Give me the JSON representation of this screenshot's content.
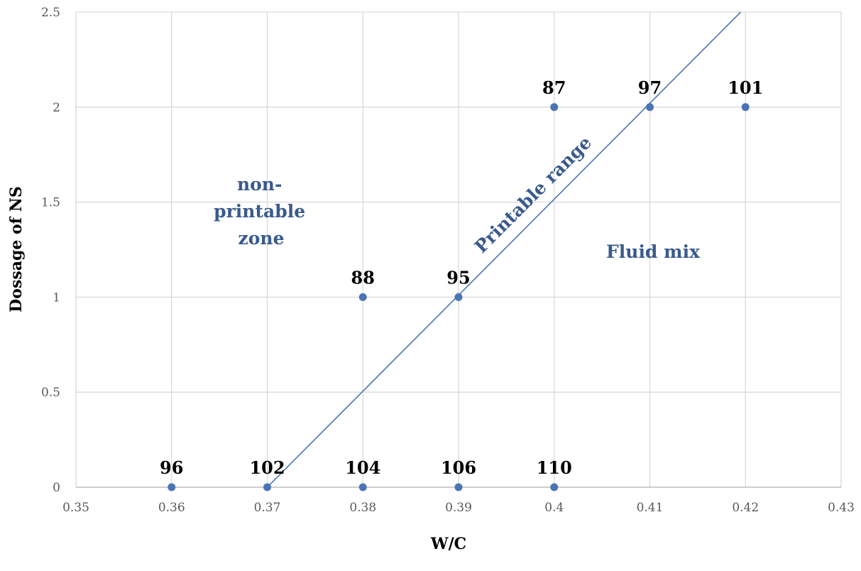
{
  "chart_data": {
    "type": "scatter",
    "xlabel": "W/C",
    "ylabel": "Dossage of NS",
    "xlim": [
      0.35,
      0.43
    ],
    "ylim": [
      0,
      2.5
    ],
    "x_ticks": [
      "0.35",
      "0.36",
      "0.37",
      "0.38",
      "0.39",
      "0.4",
      "0.41",
      "0.42",
      "0.43"
    ],
    "y_ticks": [
      "0",
      "0.5",
      "1",
      "1.5",
      "2",
      "2.5"
    ],
    "grid": true,
    "colors": {
      "marker": "#4a74b5",
      "line": "#4a74b5",
      "annotation": "#3a5a8c",
      "grid": "#d9d9d9"
    },
    "points": [
      {
        "x": 0.36,
        "y": 0,
        "label": "96"
      },
      {
        "x": 0.37,
        "y": 0,
        "label": "102"
      },
      {
        "x": 0.38,
        "y": 0,
        "label": "104"
      },
      {
        "x": 0.39,
        "y": 0,
        "label": "106"
      },
      {
        "x": 0.4,
        "y": 0,
        "label": "110"
      },
      {
        "x": 0.38,
        "y": 1,
        "label": "88"
      },
      {
        "x": 0.39,
        "y": 1,
        "label": "95"
      },
      {
        "x": 0.4,
        "y": 2,
        "label": "87"
      },
      {
        "x": 0.41,
        "y": 2,
        "label": "97"
      },
      {
        "x": 0.42,
        "y": 2,
        "label": "101"
      }
    ],
    "boundary_line": {
      "x": [
        0.37,
        0.4195
      ],
      "y": [
        0,
        2.5
      ]
    },
    "annotations": {
      "non_printable_lines": [
        "non-",
        "printable",
        "zone"
      ],
      "printable_range": "Printable range",
      "fluid_mix": "Fluid mix"
    }
  }
}
